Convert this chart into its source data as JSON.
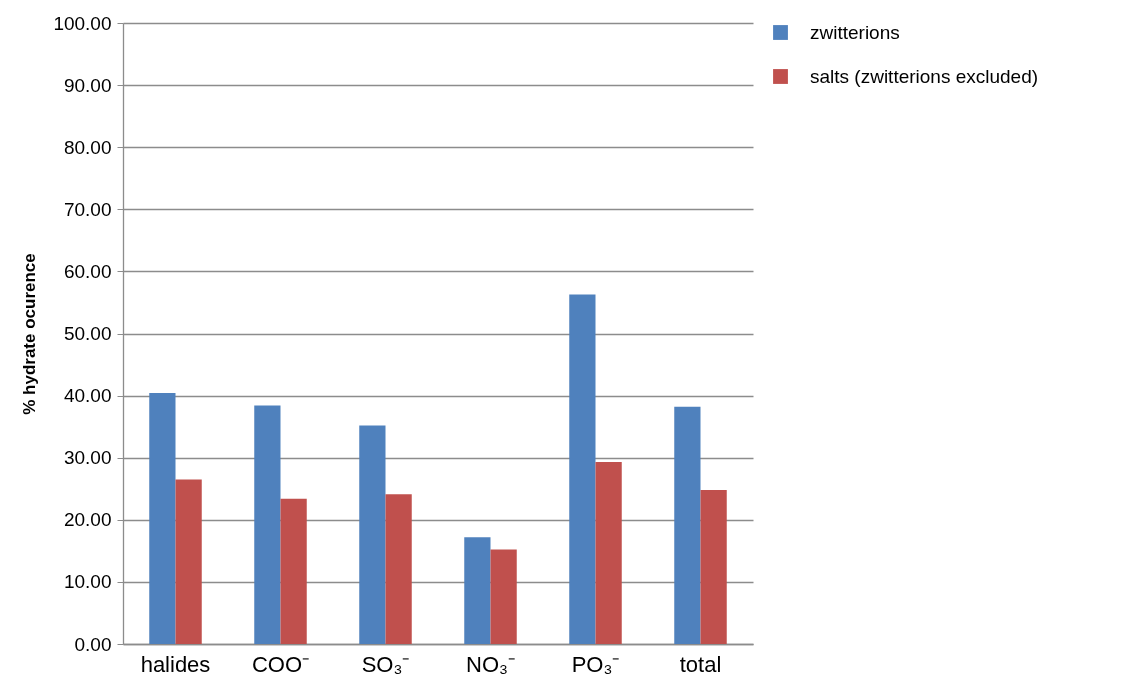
{
  "chart_data": {
    "type": "bar",
    "ylabel": "% hydrate ocurence",
    "categories": [
      "halides",
      "COO⁻",
      "SO₃⁻",
      "NO₃⁻",
      "PO₃⁻",
      "total"
    ],
    "series": [
      {
        "name": "zwitterions",
        "color": "#4f81bd",
        "values": [
          40.4,
          38.4,
          35.2,
          17.2,
          56.3,
          38.2
        ]
      },
      {
        "name": "salts (zwitterions excluded)",
        "color": "#c0504d",
        "values": [
          26.5,
          23.4,
          24.1,
          15.2,
          29.3,
          24.8
        ]
      }
    ],
    "ylim": [
      0,
      100
    ],
    "yticks": [
      {
        "value": 0,
        "label": "0.00"
      },
      {
        "value": 10,
        "label": "10.00"
      },
      {
        "value": 20,
        "label": "20.00"
      },
      {
        "value": 30,
        "label": "30.00"
      },
      {
        "value": 40,
        "label": "40.00"
      },
      {
        "value": 50,
        "label": "50.00"
      },
      {
        "value": 60,
        "label": "60.00"
      },
      {
        "value": 70,
        "label": "70.00"
      },
      {
        "value": 80,
        "label": "80.00"
      },
      {
        "value": 90,
        "label": "90.00"
      },
      {
        "value": 100,
        "label": "100.00"
      }
    ],
    "grid": "y",
    "legend": "right"
  }
}
